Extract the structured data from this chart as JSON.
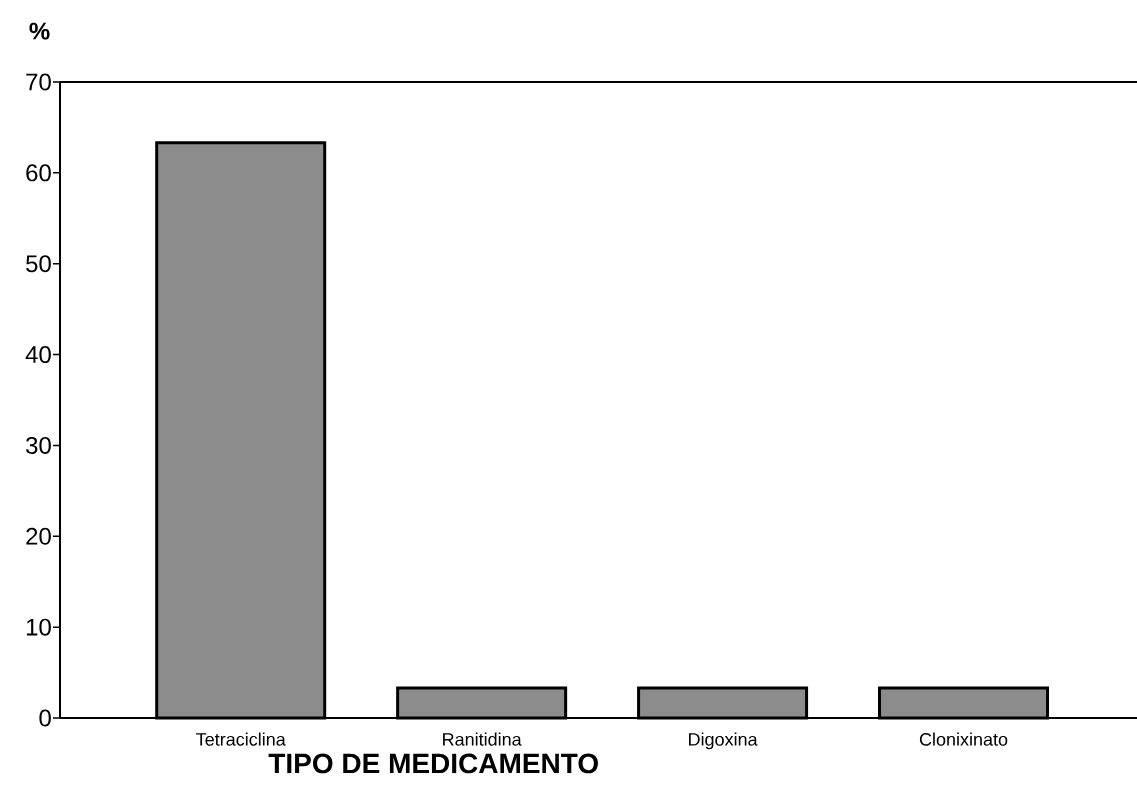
{
  "chart_data": {
    "type": "bar",
    "xlabel": "TIPO DE MEDICAMENTO",
    "ylabel": "%",
    "categories": [
      "Tetraciclina",
      "Ranitidina",
      "Digoxina",
      "Clonixinato"
    ],
    "values": [
      63.3,
      3.3,
      3.3,
      3.3
    ],
    "color": "#8c8c8c",
    "ylim": [
      0,
      70
    ],
    "yticks": [
      0,
      10,
      20,
      30,
      40,
      50,
      60,
      70
    ]
  }
}
